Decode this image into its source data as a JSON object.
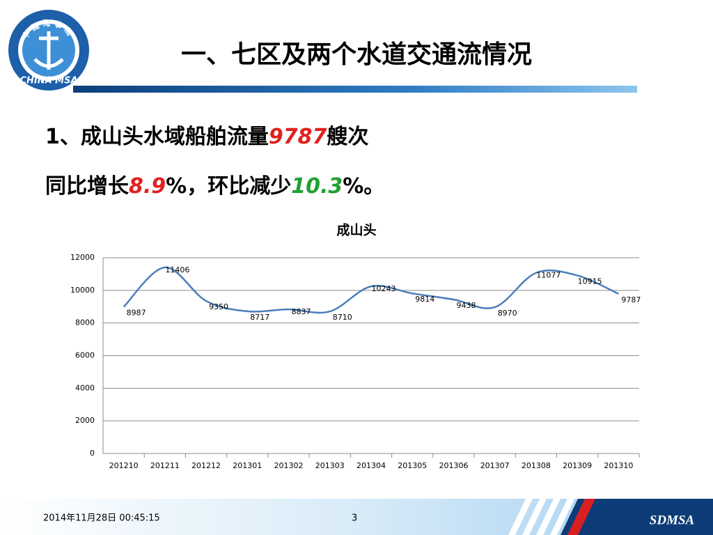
{
  "slide": {
    "title": "一、七区及两个水道交通流情况",
    "line1": [
      "1、成山头水域船舶流量",
      "9787",
      "艘次"
    ],
    "line2": [
      "同比增长",
      "8.9",
      "%，环比减少",
      "10.3",
      "%。"
    ],
    "logo_top": "中国海事局",
    "logo_bottom": "CHINA MSA",
    "footer_date": "2014年11月28日  00:45:15",
    "page_number": "3",
    "brand": "SDMSA"
  },
  "chart_data": {
    "type": "line",
    "title": "成山头",
    "categories": [
      "201210",
      "201211",
      "201212",
      "201301",
      "201302",
      "201303",
      "201304",
      "201305",
      "201306",
      "201307",
      "201308",
      "201309",
      "201310"
    ],
    "values": [
      8987,
      11406,
      9350,
      8717,
      8837,
      8710,
      10243,
      9814,
      9438,
      8970,
      11077,
      10915,
      9787
    ],
    "color": "#4a7ebb",
    "ylim": [
      0,
      12000
    ],
    "yticks": [
      0,
      2000,
      4000,
      6000,
      8000,
      10000,
      12000
    ],
    "grid": true,
    "smooth": true
  }
}
